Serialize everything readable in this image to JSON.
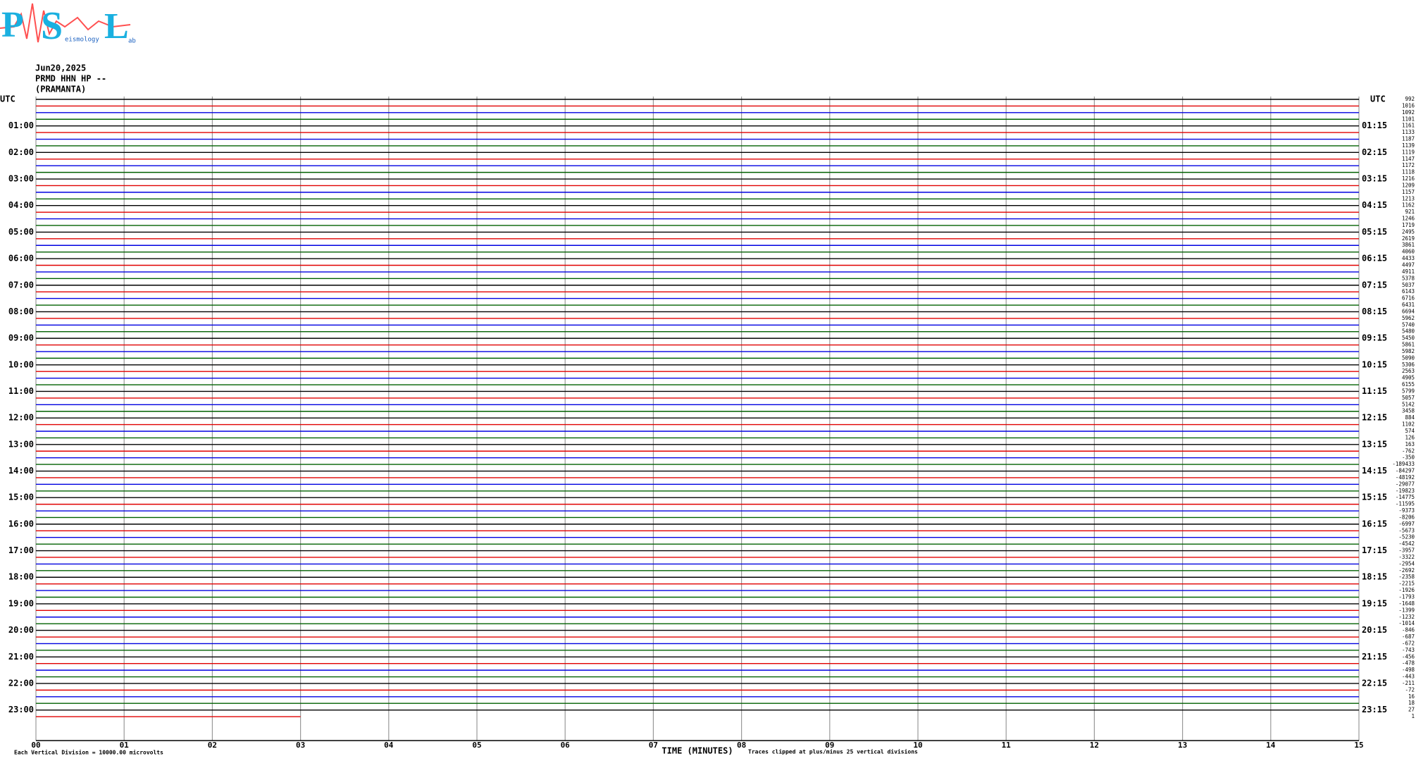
{
  "chart_data": {
    "type": "helicorder",
    "logo": {
      "letters": [
        "P",
        "S",
        "L"
      ],
      "words": [
        "eismology",
        "ab"
      ]
    },
    "date": "Jun20,2025",
    "station": "PRMD HHN HP --",
    "location": "(PRAMANTA)",
    "utc_label": "UTC",
    "left_labels": [
      "01:00",
      "02:00",
      "03:00",
      "04:00",
      "05:00",
      "06:00",
      "07:00",
      "08:00",
      "09:00",
      "10:00",
      "11:00",
      "12:00",
      "13:00",
      "14:00",
      "15:00",
      "16:00",
      "17:00",
      "18:00",
      "19:00",
      "20:00",
      "21:00",
      "22:00",
      "23:00"
    ],
    "right_labels": [
      "01:15",
      "02:15",
      "03:15",
      "04:15",
      "05:15",
      "06:15",
      "07:15",
      "08:15",
      "09:15",
      "10:15",
      "11:15",
      "12:15",
      "13:15",
      "14:15",
      "15:15",
      "16:15",
      "17:15",
      "18:15",
      "19:15",
      "20:15",
      "21:15",
      "22:15",
      "23:15"
    ],
    "trace_values": [
      992,
      1016,
      1092,
      1101,
      1161,
      1133,
      1187,
      1139,
      1119,
      1147,
      1172,
      1118,
      1216,
      1209,
      1157,
      1213,
      1162,
      921,
      1246,
      1719,
      2495,
      2619,
      3861,
      4060,
      4433,
      4497,
      4911,
      5378,
      5037,
      6143,
      6716,
      6431,
      6694,
      5962,
      5740,
      5480,
      5450,
      5861,
      5982,
      5090,
      5306,
      2563,
      4905,
      6155,
      5799,
      5057,
      5142,
      3458,
      884,
      1102,
      574,
      126,
      163,
      -762,
      -350,
      -189433,
      -84297,
      -48192,
      -29077,
      -19823,
      -14775,
      -11595,
      -9373,
      -8206,
      -6997,
      -5673,
      -5230,
      -4542,
      -3957,
      -3322,
      -2954,
      -2692,
      -2358,
      -2215,
      -1926,
      -1793,
      -1648,
      -1399,
      -1232,
      -1014,
      -846,
      -687,
      -672,
      -743,
      -456,
      -478,
      -498,
      -443,
      -211,
      -72,
      16,
      18,
      27,
      1
    ],
    "trace_colors": [
      "#000000",
      "#e00000",
      "#0000e0",
      "#006000"
    ],
    "last_trace_minutes": 3,
    "xlim": [
      0,
      15
    ],
    "xticks": [
      {
        "value": 0,
        "label": "00"
      },
      {
        "value": 1,
        "label": "01"
      },
      {
        "value": 2,
        "label": "02"
      },
      {
        "value": 3,
        "label": "03"
      },
      {
        "value": 4,
        "label": "04"
      },
      {
        "value": 5,
        "label": "05"
      },
      {
        "value": 6,
        "label": "06"
      },
      {
        "value": 7,
        "label": "07"
      },
      {
        "value": 8,
        "label": "08"
      },
      {
        "value": 9,
        "label": "09"
      },
      10,
      11,
      12,
      13,
      14,
      15
    ],
    "xlabel": "TIME (MINUTES)",
    "note_left": "Each Vertical Division = 10000.00 microvolts",
    "note_right": "Traces clipped at plus/minus 25 vertical divisions"
  }
}
